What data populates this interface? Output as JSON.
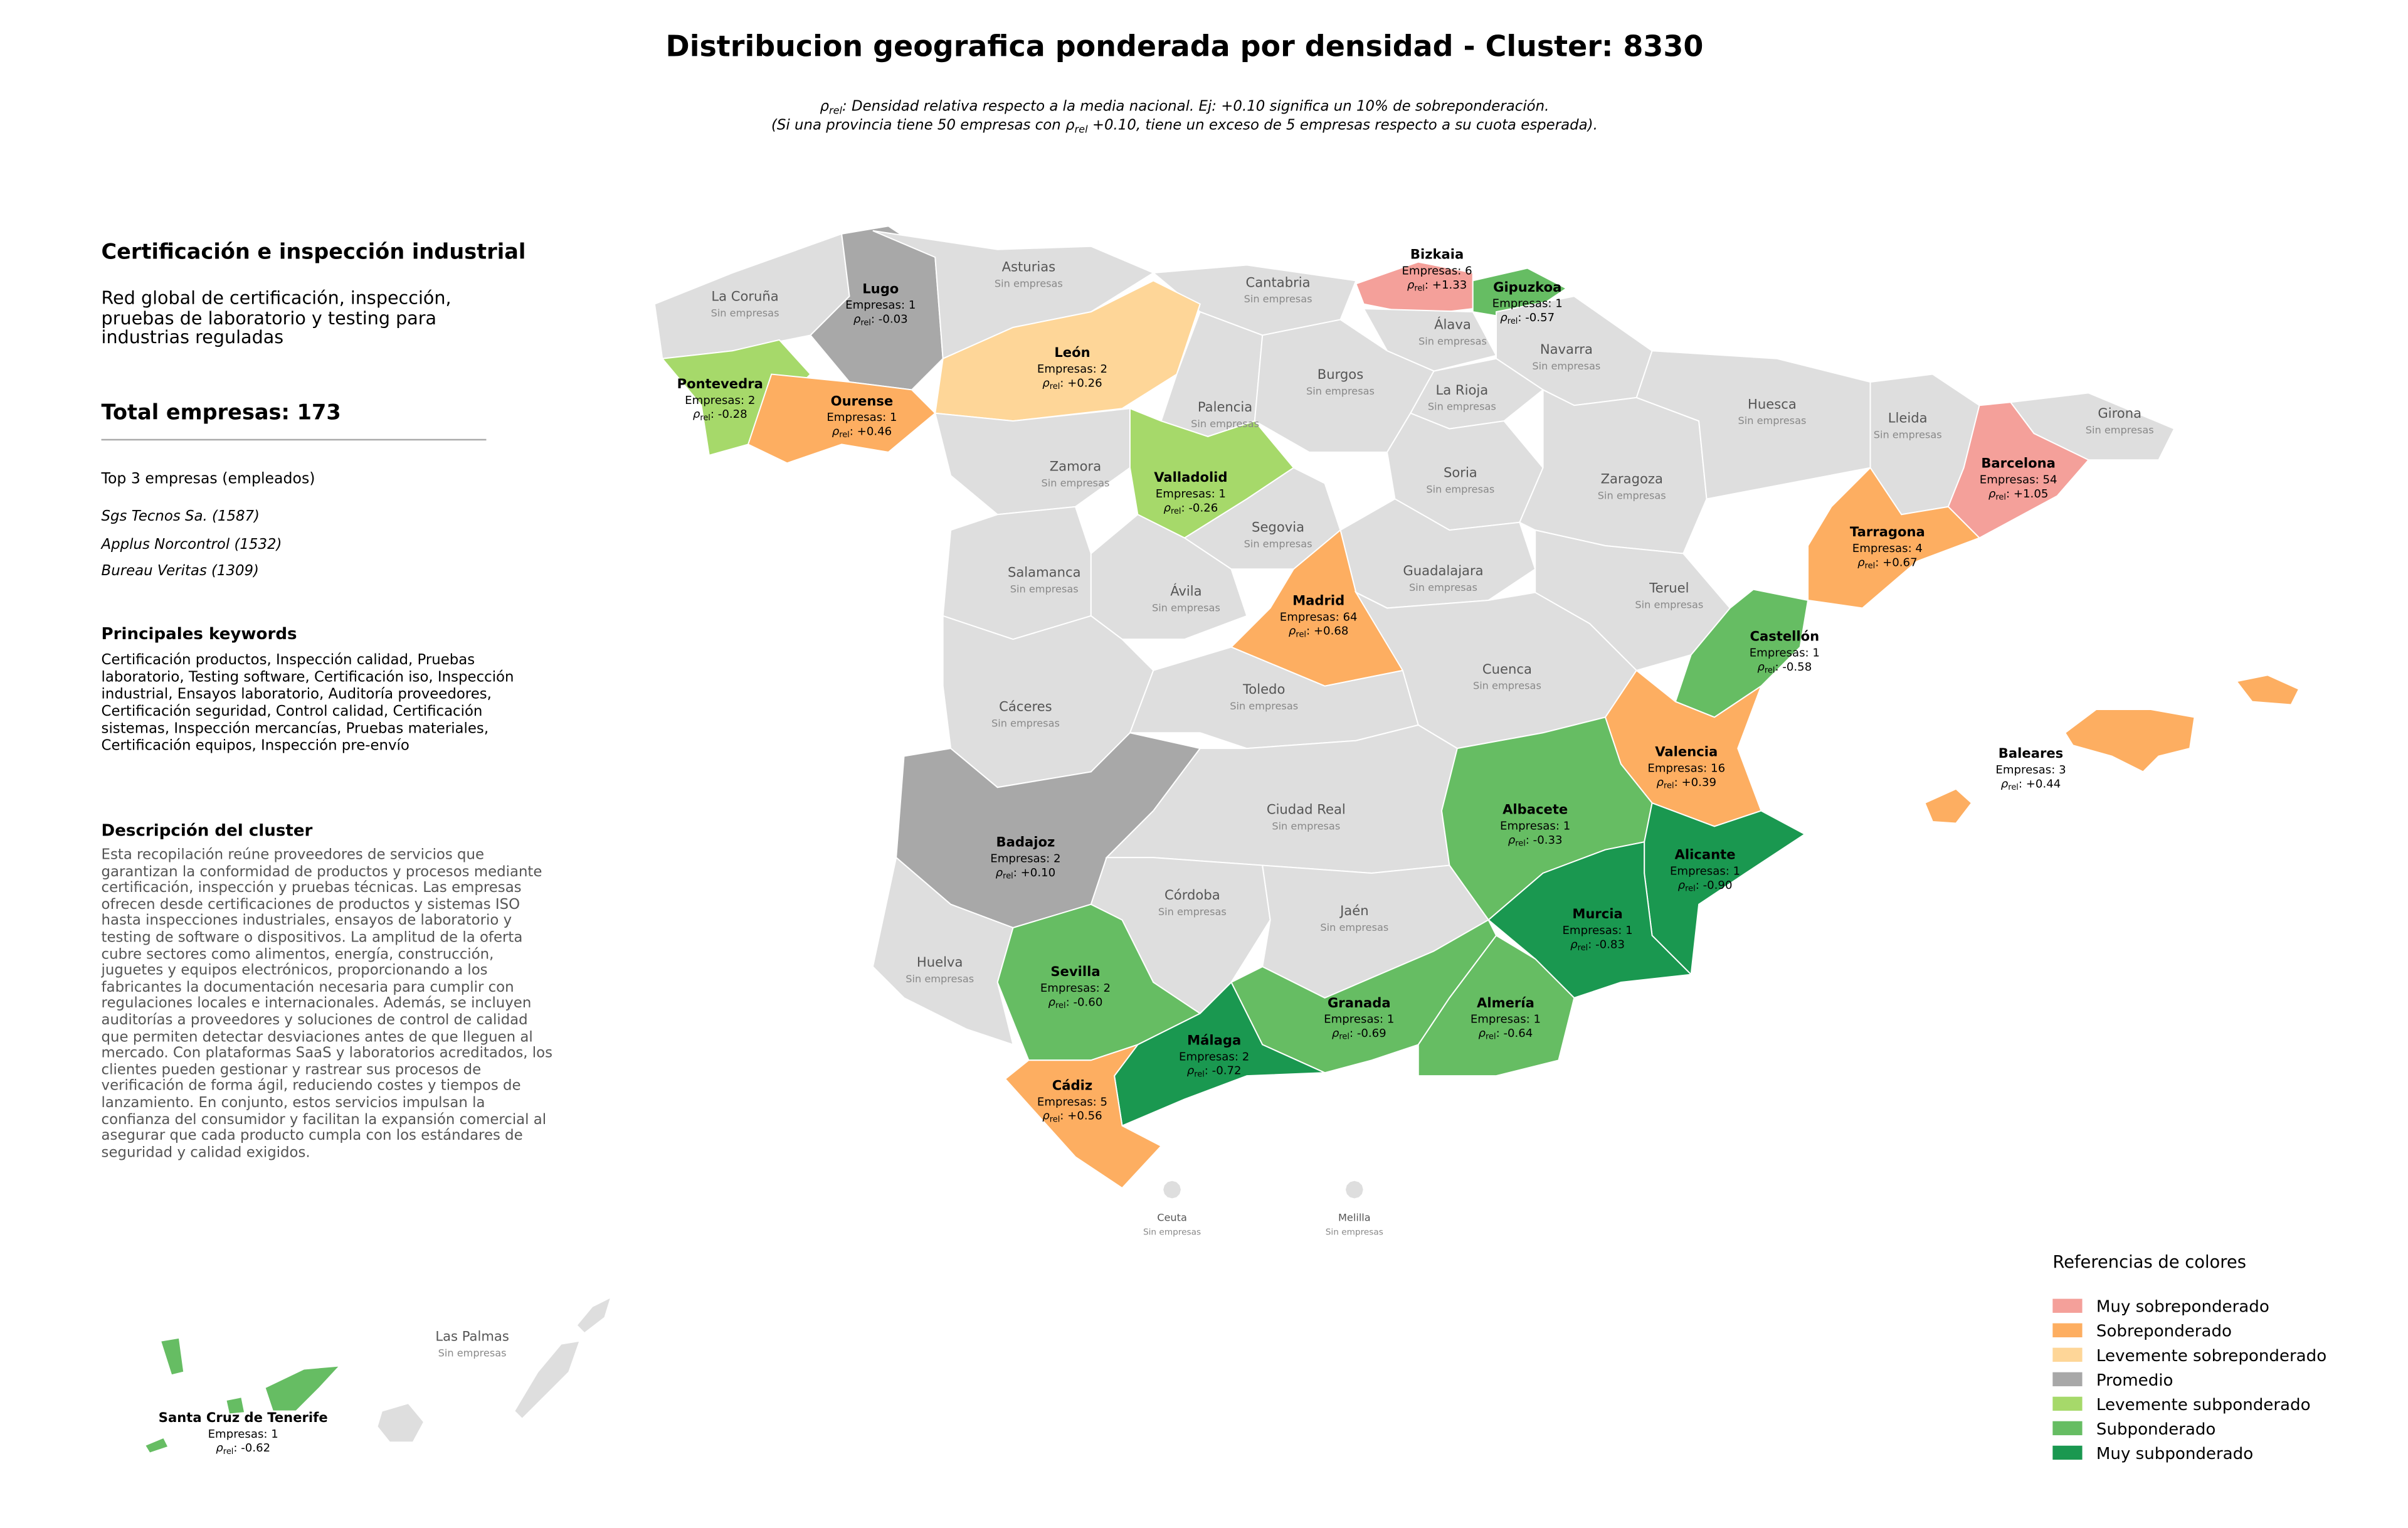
{
  "title": "Distribucion geografica ponderada por densidad - Cluster: 8330",
  "subtitle": {
    "rho_symbol": "ρ",
    "rho_sub": "rel",
    "line1": ": Densidad relativa respecto a la media nacional. Ej: +0.10 significa un 10% de sobreponderación.",
    "line2_start": "(Si una provincia tiene 50 empresas con ",
    "line2_end": " +0.10, tiene un exceso de 5 empresas respecto a su cuota esperada)."
  },
  "panel": {
    "heading": "Certificación e inspección industrial",
    "summary": "Red global de certificación, inspección, pruebas de laboratorio y testing para industrias reguladas",
    "total": "Total empresas: 173",
    "top_heading": "Top 3 empresas (empleados)",
    "top": [
      "Sgs Tecnos Sa. (1587)",
      "Applus Norcontrol (1532)",
      "Bureau Veritas (1309)"
    ],
    "keywords_heading": "Principales keywords",
    "keywords": "Certificación productos, Inspección calidad, Pruebas laboratorio, Testing software, Certificación iso, Inspección industrial, Ensayos laboratorio, Auditoría proveedores, Certificación seguridad, Control calidad, Certificación sistemas, Inspección mercancías, Pruebas materiales, Certificación equipos, Inspección pre-envío",
    "description_heading": "Descripción del cluster",
    "description": "Esta recopilación reúne proveedores de servicios que garantizan la conformidad de productos y procesos mediante certificación, inspección y pruebas técnicas. Las empresas ofrecen desde certificaciones de productos y sistemas ISO hasta inspecciones industriales, ensayos de laboratorio y testing de software o dispositivos. La amplitud de la oferta cubre sectores como alimentos, energía, construcción, juguetes y equipos electrónicos, proporcionando a los fabricantes la documentación necesaria para cumplir con regulaciones locales e internacionales. Además, se incluyen auditorías a proveedores y soluciones de control de calidad que permiten detectar desviaciones antes de que lleguen al mercado. Con plataformas SaaS y laboratorios acreditados, los clientes pueden gestionar y rastrear sus procesos de verificación de forma ágil, reduciendo costes y tiempos de lanzamiento. En conjunto, estos servicios impulsan la confianza del consumidor y facilitan la expansión comercial al asegurar que cada producto cumpla con los estándares de seguridad y calidad exigidos."
  },
  "map": {
    "rho_separator": ": ",
    "no_data_color": "#dedede",
    "provinces": [
      {
        "name": "La Coruña",
        "status": "Sin empresas"
      },
      {
        "name": "Lugo",
        "companies": "Empresas: 1",
        "rho": "-0.03",
        "color": "#a8a8a8"
      },
      {
        "name": "Pontevedra",
        "companies": "Empresas: 2",
        "rho": "-0.28",
        "color": "#a6d96a"
      },
      {
        "name": "Ourense",
        "companies": "Empresas: 1",
        "rho": "+0.46",
        "color": "#fdae61"
      },
      {
        "name": "Asturias",
        "status": "Sin empresas"
      },
      {
        "name": "Cantabria",
        "status": "Sin empresas"
      },
      {
        "name": "Bizkaia",
        "companies": "Empresas: 6",
        "rho": "+1.33",
        "color": "#f4a09a"
      },
      {
        "name": "Gipuzkoa",
        "companies": "Empresas: 1",
        "rho": "-0.57",
        "color": "#66bd63"
      },
      {
        "name": "Álava",
        "status": "Sin empresas"
      },
      {
        "name": "Navarra",
        "status": "Sin empresas"
      },
      {
        "name": "León",
        "companies": "Empresas: 2",
        "rho": "+0.26",
        "color": "#fed698"
      },
      {
        "name": "Palencia",
        "status": "Sin empresas"
      },
      {
        "name": "Burgos",
        "status": "Sin empresas"
      },
      {
        "name": "La Rioja",
        "status": "Sin empresas"
      },
      {
        "name": "Zamora",
        "status": "Sin empresas"
      },
      {
        "name": "Valladolid",
        "companies": "Empresas: 1",
        "rho": "-0.26",
        "color": "#a6d96a"
      },
      {
        "name": "Soria",
        "status": "Sin empresas"
      },
      {
        "name": "Zaragoza",
        "status": "Sin empresas"
      },
      {
        "name": "Huesca",
        "status": "Sin empresas"
      },
      {
        "name": "Lleida",
        "status": "Sin empresas"
      },
      {
        "name": "Girona",
        "status": "Sin empresas"
      },
      {
        "name": "Barcelona",
        "companies": "Empresas: 54",
        "rho": "+1.05",
        "color": "#f4a09a"
      },
      {
        "name": "Tarragona",
        "companies": "Empresas: 4",
        "rho": "+0.67",
        "color": "#fdae61"
      },
      {
        "name": "Segovia",
        "status": "Sin empresas"
      },
      {
        "name": "Salamanca",
        "status": "Sin empresas"
      },
      {
        "name": "Ávila",
        "status": "Sin empresas"
      },
      {
        "name": "Guadalajara",
        "status": "Sin empresas"
      },
      {
        "name": "Madrid",
        "companies": "Empresas: 64",
        "rho": "+0.68",
        "color": "#fdae61"
      },
      {
        "name": "Teruel",
        "status": "Sin empresas"
      },
      {
        "name": "Cáceres",
        "status": "Sin empresas"
      },
      {
        "name": "Toledo",
        "status": "Sin empresas"
      },
      {
        "name": "Cuenca",
        "status": "Sin empresas"
      },
      {
        "name": "Castellón",
        "companies": "Empresas: 1",
        "rho": "-0.58",
        "color": "#66bd63"
      },
      {
        "name": "Valencia",
        "companies": "Empresas: 16",
        "rho": "+0.39",
        "color": "#fdae61"
      },
      {
        "name": "Badajoz",
        "companies": "Empresas: 2",
        "rho": "+0.10",
        "color": "#a8a8a8"
      },
      {
        "name": "Ciudad Real",
        "status": "Sin empresas"
      },
      {
        "name": "Albacete",
        "companies": "Empresas: 1",
        "rho": "-0.33",
        "color": "#66bd63"
      },
      {
        "name": "Alicante",
        "companies": "Empresas: 1",
        "rho": "-0.90",
        "color": "#1a9850"
      },
      {
        "name": "Huelva",
        "status": "Sin empresas"
      },
      {
        "name": "Sevilla",
        "companies": "Empresas: 2",
        "rho": "-0.60",
        "color": "#66bd63"
      },
      {
        "name": "Córdoba",
        "status": "Sin empresas"
      },
      {
        "name": "Jaén",
        "status": "Sin empresas"
      },
      {
        "name": "Murcia",
        "companies": "Empresas: 1",
        "rho": "-0.83",
        "color": "#1a9850"
      },
      {
        "name": "Granada",
        "companies": "Empresas: 1",
        "rho": "-0.69",
        "color": "#66bd63"
      },
      {
        "name": "Almería",
        "companies": "Empresas: 1",
        "rho": "-0.64",
        "color": "#66bd63"
      },
      {
        "name": "Málaga",
        "companies": "Empresas: 2",
        "rho": "-0.72",
        "color": "#1a9850"
      },
      {
        "name": "Cádiz",
        "companies": "Empresas: 5",
        "rho": "+0.56",
        "color": "#fdae61"
      },
      {
        "name": "Baleares",
        "companies": "Empresas: 3",
        "rho": "+0.44",
        "color": "#fdae61"
      },
      {
        "name": "Ceuta",
        "status": "Sin empresas"
      },
      {
        "name": "Melilla",
        "status": "Sin empresas"
      },
      {
        "name": "Las Palmas",
        "status": "Sin empresas"
      },
      {
        "name": "Santa Cruz de Tenerife",
        "companies": "Empresas: 1",
        "rho": "-0.62",
        "color": "#66bd63"
      }
    ]
  },
  "legend": {
    "title": "Referencias de colores",
    "items": [
      {
        "label": "Muy sobreponderado",
        "color": "#f4a09a"
      },
      {
        "label": "Sobreponderado",
        "color": "#fdae61"
      },
      {
        "label": "Levemente sobreponderado",
        "color": "#fed698"
      },
      {
        "label": "Promedio",
        "color": "#a8a8a8"
      },
      {
        "label": "Levemente subponderado",
        "color": "#a6d96a"
      },
      {
        "label": "Subponderado",
        "color": "#66bd63"
      },
      {
        "label": "Muy subponderado",
        "color": "#1a9850"
      }
    ]
  }
}
